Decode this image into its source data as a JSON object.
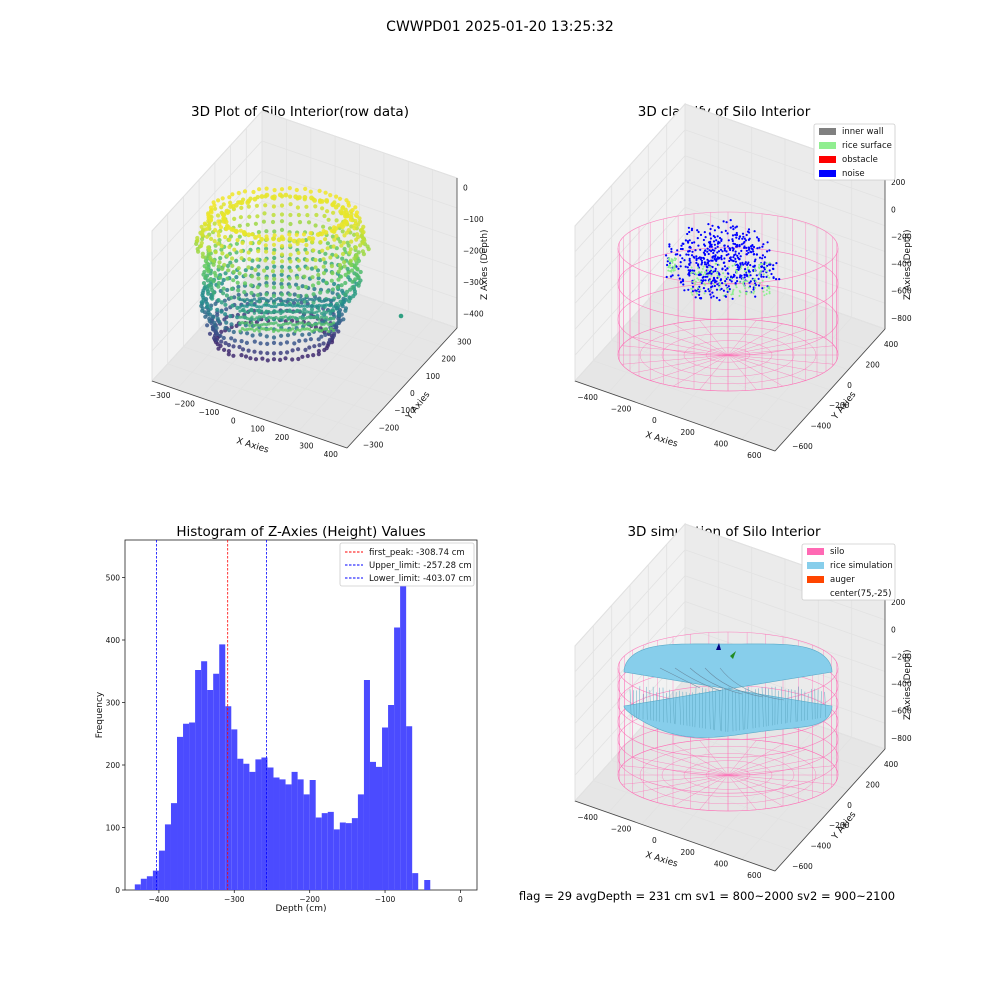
{
  "figure": {
    "suptitle": "CWWPD01 2025-01-20 13:25:32",
    "status_line": "flag = 29   avgDepth = 231 cm   sv1 = 800~2000  sv2 = 900~2100"
  },
  "colors": {
    "inner_wall": "#808080",
    "rice_surface": "#90ee90",
    "obstacle": "#ff0000",
    "noise": "#0000ff",
    "silo": "#ff69b4",
    "rice_simulation": "#87ceeb",
    "auger": "#ff4500",
    "hist_bar": "#4b4bff"
  },
  "chart_data": [
    {
      "type": "scatter",
      "title": "3D Plot of Silo Interior(row data)",
      "xlabel": "X Axies",
      "ylabel": "Y Axies",
      "zlabel": "Z Axies (Depth)",
      "x_ticks": [
        "−300",
        "−200",
        "−100",
        "0",
        "100",
        "200",
        "300",
        "400"
      ],
      "y_ticks": [
        "−300",
        "−200",
        "−100",
        "0",
        "100",
        "200",
        "300"
      ],
      "z_ticks": [
        "0",
        "−100",
        "−200",
        "−300",
        "−400"
      ],
      "xlim": [
        -330,
        450
      ],
      "ylim": [
        -320,
        320
      ],
      "zlim": [
        -450,
        20
      ],
      "colormap": "viridis"
    },
    {
      "type": "scatter",
      "title": "3D classify of Silo Interior",
      "xlabel": "X Axies",
      "ylabel": "Y Axies",
      "zlabel": "Z Axies (Depth)",
      "x_ticks": [
        "−400",
        "−200",
        "0",
        "200",
        "400",
        "600"
      ],
      "y_ticks": [
        "−600",
        "−400",
        "−200",
        "0",
        "200",
        "400"
      ],
      "z_ticks": [
        "200",
        "0",
        "−200",
        "−400",
        "−600",
        "−800"
      ],
      "xlim": [
        -500,
        700
      ],
      "ylim": [
        -650,
        500
      ],
      "zlim": [
        -900,
        250
      ],
      "legend": [
        {
          "label": "inner wall",
          "color": "#808080"
        },
        {
          "label": "rice surface",
          "color": "#90ee90"
        },
        {
          "label": "obstacle",
          "color": "#ff0000"
        },
        {
          "label": "noise",
          "color": "#0000ff"
        }
      ],
      "legend_position": "top-right"
    },
    {
      "type": "bar",
      "title": "Histogram of Z-Axies (Height) Values",
      "xlabel": "Depth (cm)",
      "ylabel": "Frequency",
      "xlim": [
        -445,
        22
      ],
      "ylim": [
        0,
        560
      ],
      "x_ticks": [
        -400,
        -300,
        -200,
        -100,
        0
      ],
      "x_tick_labels": [
        "−400",
        "−300",
        "−200",
        "−100",
        "0"
      ],
      "y_ticks": [
        0,
        100,
        200,
        300,
        400,
        500
      ],
      "bin_start": -432,
      "bin_width": 8,
      "values": [
        9,
        18,
        22,
        31,
        63,
        105,
        139,
        245,
        266,
        268,
        352,
        366,
        320,
        346,
        393,
        294,
        257,
        210,
        202,
        189,
        209,
        212,
        196,
        180,
        177,
        169,
        189,
        177,
        153,
        176,
        116,
        123,
        125,
        97,
        108,
        107,
        115,
        153,
        336,
        205,
        197,
        260,
        296,
        420,
        532,
        262,
        27,
        0,
        16
      ],
      "vlines": [
        {
          "x": -308.74,
          "color": "#ff0000",
          "label": "first_peak: -308.74 cm"
        },
        {
          "x": -257.28,
          "color": "#0000ff",
          "label": "Upper_limit: -257.28 cm"
        },
        {
          "x": -403.07,
          "color": "#0000ff",
          "label": "Lower_limit: -403.07 cm"
        }
      ],
      "legend_position": "top-right"
    },
    {
      "type": "area",
      "title": "3D simulation of Silo Interior",
      "xlabel": "X Axies",
      "ylabel": "Y Axies",
      "zlabel": "Z Axies (Depth)",
      "x_ticks": [
        "−400",
        "−200",
        "0",
        "200",
        "400",
        "600"
      ],
      "y_ticks": [
        "−600",
        "−400",
        "−200",
        "0",
        "200",
        "400"
      ],
      "z_ticks": [
        "200",
        "0",
        "−200",
        "−400",
        "−600",
        "−800"
      ],
      "xlim": [
        -500,
        700
      ],
      "ylim": [
        -650,
        500
      ],
      "zlim": [
        -900,
        250
      ],
      "legend": [
        {
          "label": "silo",
          "color": "#ff69b4"
        },
        {
          "label": "rice simulation",
          "color": "#87ceeb"
        },
        {
          "label": "auger",
          "color": "#ff4500"
        },
        {
          "label": "center(75,-25)",
          "color": ""
        }
      ],
      "legend_position": "top-right"
    }
  ]
}
